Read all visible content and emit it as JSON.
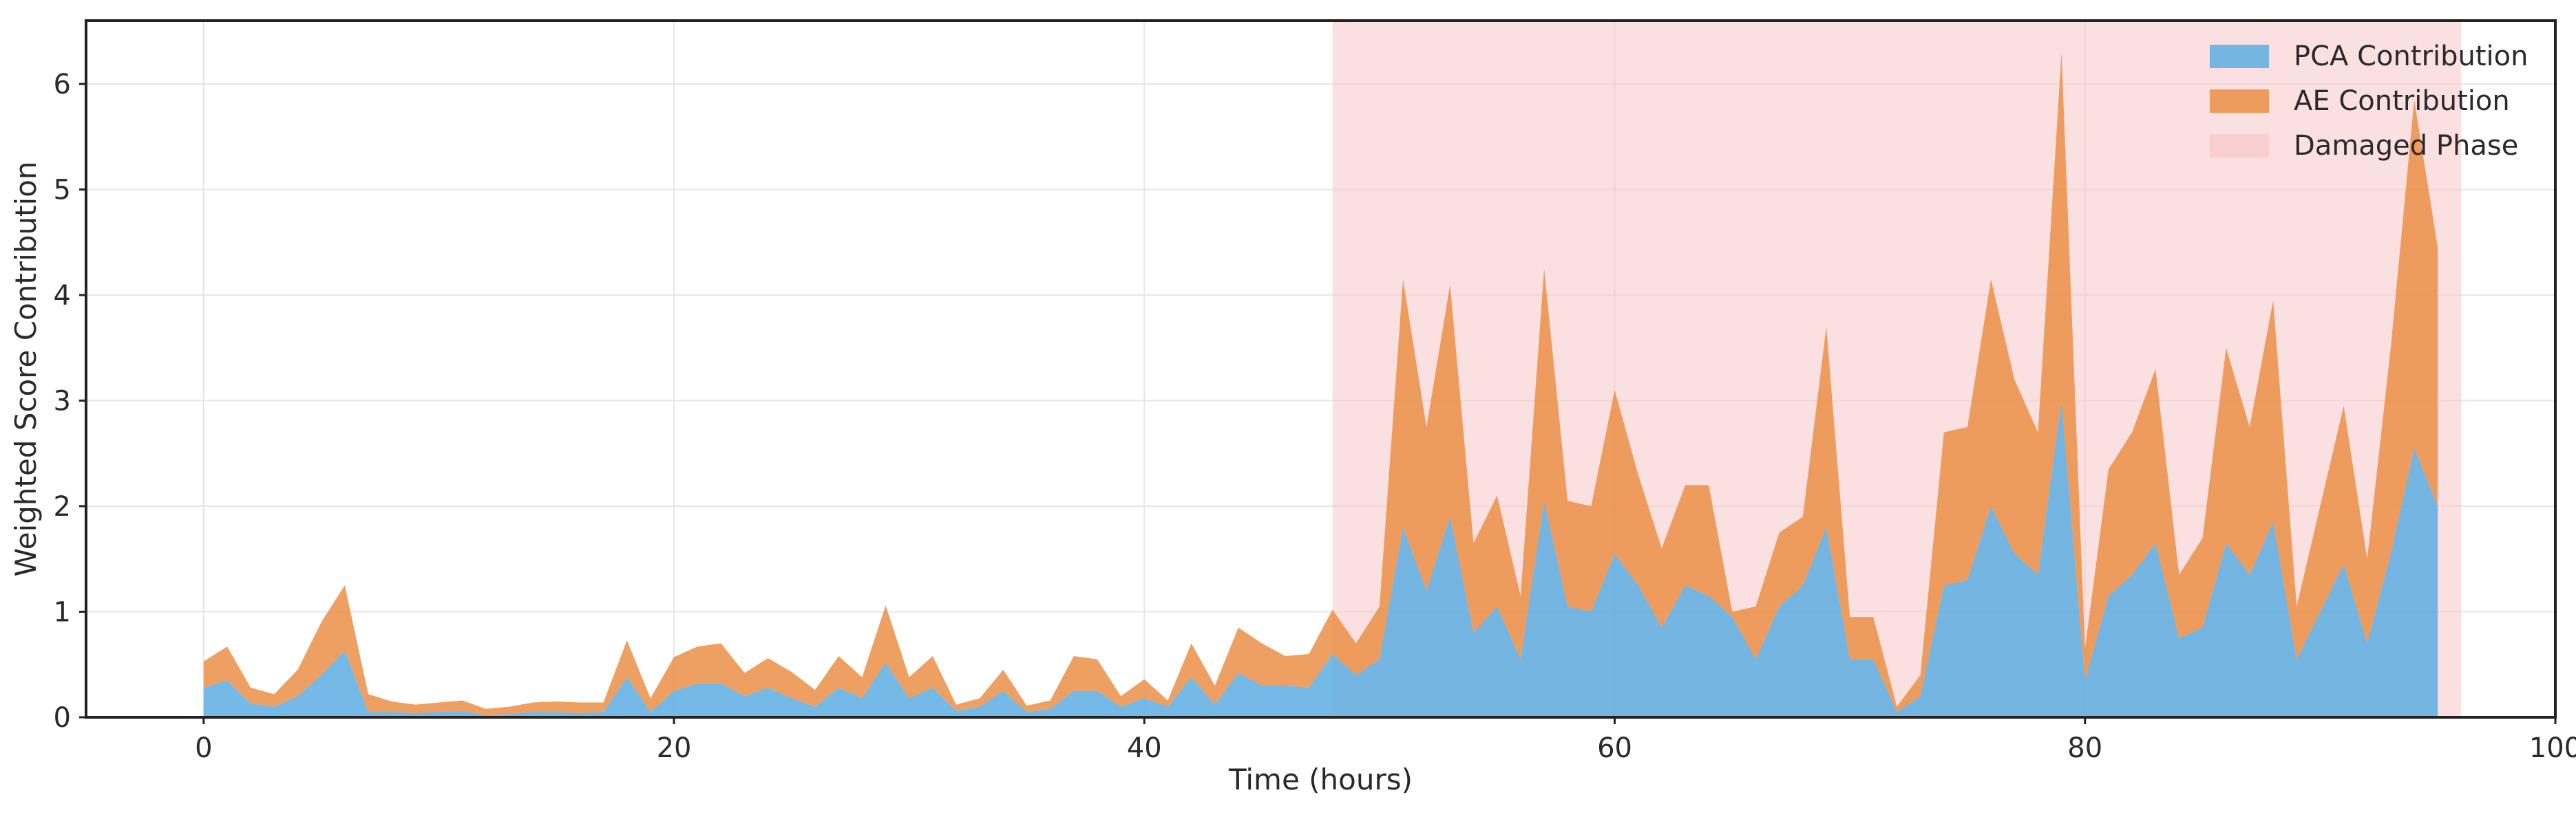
{
  "chart_data": {
    "type": "area",
    "stacked": true,
    "title": "",
    "xlabel": "Time (hours)",
    "ylabel": "Weighted Score Contribution",
    "xlim": [
      -5,
      100
    ],
    "ylim": [
      0,
      6.6
    ],
    "xticks": [
      0,
      20,
      40,
      60,
      80,
      100
    ],
    "yticks": [
      0,
      1,
      2,
      3,
      4,
      5,
      6
    ],
    "grid": true,
    "legend_position": "top-right",
    "x": [
      0,
      1,
      2,
      3,
      4,
      5,
      6,
      7,
      8,
      9,
      10,
      11,
      12,
      13,
      14,
      15,
      16,
      17,
      18,
      19,
      20,
      21,
      22,
      23,
      24,
      25,
      26,
      27,
      28,
      29,
      30,
      31,
      32,
      33,
      34,
      35,
      36,
      37,
      38,
      39,
      40,
      41,
      42,
      43,
      44,
      45,
      46,
      47,
      48,
      49,
      50,
      51,
      52,
      53,
      54,
      55,
      56,
      57,
      58,
      59,
      60,
      61,
      62,
      63,
      64,
      65,
      66,
      67,
      68,
      69,
      70,
      71,
      72,
      73,
      74,
      75,
      76,
      77,
      78,
      79,
      80,
      81,
      82,
      83,
      84,
      85,
      86,
      87,
      88,
      89,
      90,
      91,
      92,
      93,
      94,
      95
    ],
    "series": [
      {
        "name": "PCA Contribution",
        "color": "#5dade2",
        "values": [
          0.28,
          0.35,
          0.13,
          0.1,
          0.2,
          0.4,
          0.63,
          0.05,
          0.05,
          0.04,
          0.05,
          0.06,
          0.02,
          0.03,
          0.05,
          0.05,
          0.04,
          0.05,
          0.38,
          0.05,
          0.25,
          0.32,
          0.32,
          0.2,
          0.28,
          0.18,
          0.1,
          0.28,
          0.18,
          0.52,
          0.18,
          0.28,
          0.06,
          0.1,
          0.25,
          0.05,
          0.08,
          0.25,
          0.25,
          0.1,
          0.18,
          0.1,
          0.38,
          0.12,
          0.42,
          0.3,
          0.3,
          0.28,
          0.6,
          0.4,
          0.55,
          1.8,
          1.2,
          1.9,
          0.8,
          1.05,
          0.55,
          2.05,
          1.05,
          1.0,
          1.55,
          1.25,
          0.85,
          1.25,
          1.15,
          0.95,
          0.55,
          1.05,
          1.25,
          1.8,
          0.55,
          0.55,
          0.05,
          0.2,
          1.25,
          1.3,
          2.0,
          1.55,
          1.35,
          3.0,
          0.35,
          1.15,
          1.35,
          1.65,
          0.75,
          0.85,
          1.65,
          1.35,
          1.85,
          0.55,
          1.0,
          1.45,
          0.7,
          1.55,
          2.55,
          2.0
        ]
      },
      {
        "name": "AE Contribution",
        "color": "#eb8f47",
        "values": [
          0.25,
          0.32,
          0.15,
          0.12,
          0.25,
          0.5,
          0.62,
          0.17,
          0.1,
          0.08,
          0.09,
          0.1,
          0.06,
          0.07,
          0.09,
          0.1,
          0.1,
          0.09,
          0.35,
          0.13,
          0.32,
          0.35,
          0.38,
          0.22,
          0.28,
          0.25,
          0.16,
          0.3,
          0.2,
          0.54,
          0.2,
          0.3,
          0.06,
          0.08,
          0.2,
          0.06,
          0.08,
          0.33,
          0.3,
          0.1,
          0.18,
          0.06,
          0.32,
          0.18,
          0.43,
          0.4,
          0.28,
          0.32,
          0.42,
          0.3,
          0.5,
          2.35,
          1.55,
          2.2,
          0.85,
          1.05,
          0.6,
          2.2,
          1.0,
          1.0,
          1.55,
          1.05,
          0.75,
          0.95,
          1.05,
          0.05,
          0.5,
          0.7,
          0.65,
          1.9,
          0.4,
          0.4,
          0.05,
          0.2,
          1.45,
          1.45,
          2.15,
          1.65,
          1.35,
          3.3,
          0.3,
          1.2,
          1.35,
          1.65,
          0.6,
          0.85,
          1.85,
          1.4,
          2.1,
          0.5,
          1.0,
          1.5,
          0.8,
          1.95,
          3.3,
          2.45
        ]
      }
    ],
    "shaded_region": {
      "name": "Damaged Phase",
      "x_start": 48,
      "x_end": 96,
      "color": "#f7c6c9"
    }
  }
}
